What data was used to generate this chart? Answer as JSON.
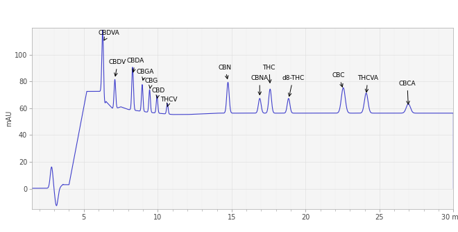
{
  "title": "",
  "xlabel": "min",
  "ylabel": "mAU",
  "xlim": [
    1.5,
    30
  ],
  "ylim": [
    -15,
    120
  ],
  "yticks": [
    0,
    20,
    40,
    60,
    80,
    100
  ],
  "xticks": [
    5,
    10,
    15,
    20,
    25,
    30
  ],
  "line_color": "#4040cc",
  "bg_color": "#ffffff",
  "plot_bg": "#f5f5f5",
  "ann_data": [
    [
      "CBDVA",
      5.95,
      114,
      6.28,
      109
    ],
    [
      "CBDV",
      6.7,
      92,
      7.1,
      82
    ],
    [
      "CBDA",
      7.9,
      93,
      8.3,
      85
    ],
    [
      "CBGA",
      8.55,
      85,
      8.95,
      79
    ],
    [
      "CBG",
      9.1,
      78,
      9.45,
      73
    ],
    [
      "CBD",
      9.6,
      71,
      9.95,
      67
    ],
    [
      "THCV",
      10.2,
      64,
      10.65,
      61
    ],
    [
      "CBN",
      14.1,
      88,
      14.75,
      80
    ],
    [
      "CBNA",
      16.3,
      80,
      16.9,
      68
    ],
    [
      "THC",
      17.1,
      88,
      17.6,
      77
    ],
    [
      "d8-THC",
      18.4,
      80,
      18.85,
      67
    ],
    [
      "CBC",
      21.8,
      82,
      22.55,
      74
    ],
    [
      "THCVA",
      23.5,
      80,
      24.1,
      70
    ],
    [
      "CBCA",
      26.3,
      76,
      26.95,
      61
    ]
  ]
}
